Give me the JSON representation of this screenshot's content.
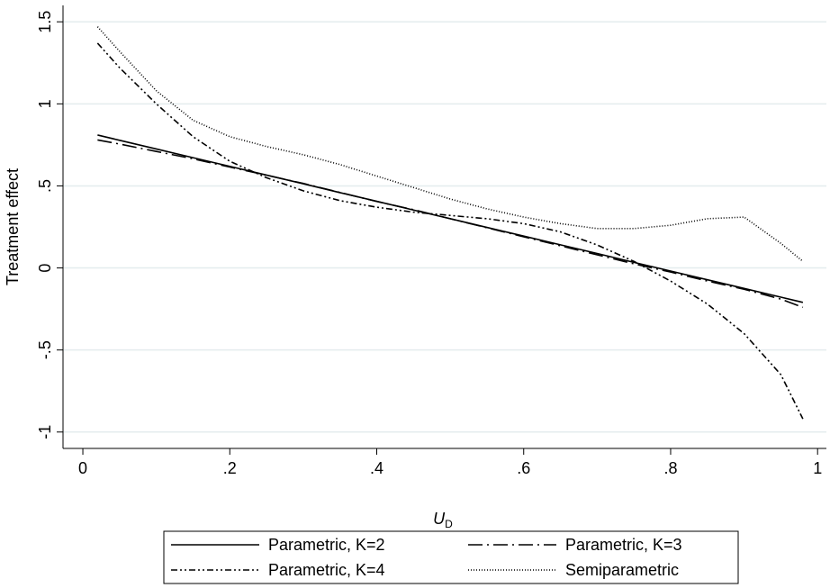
{
  "chart_data": {
    "type": "line",
    "ylabel": "Treatment effect",
    "xlabel": {
      "main": "U",
      "sub": "D"
    },
    "x": [
      0.02,
      0.05,
      0.1,
      0.15,
      0.2,
      0.25,
      0.3,
      0.35,
      0.4,
      0.45,
      0.5,
      0.55,
      0.6,
      0.65,
      0.7,
      0.75,
      0.8,
      0.85,
      0.9,
      0.95,
      0.98
    ],
    "series": [
      {
        "name": "Parametric, K=2",
        "color": "#000000",
        "linestyle": "solid",
        "values": [
          0.81,
          0.778,
          0.725,
          0.672,
          0.619,
          0.566,
          0.513,
          0.459,
          0.406,
          0.353,
          0.3,
          0.247,
          0.194,
          0.141,
          0.088,
          0.034,
          -0.019,
          -0.072,
          -0.125,
          -0.178,
          -0.21
        ]
      },
      {
        "name": "Parametric, K=3",
        "color": "#000000",
        "linestyle": "longdashdot",
        "values": [
          0.78,
          0.755,
          0.71,
          0.665,
          0.615,
          0.565,
          0.515,
          0.46,
          0.405,
          0.355,
          0.3,
          0.245,
          0.19,
          0.135,
          0.08,
          0.025,
          -0.025,
          -0.08,
          -0.13,
          -0.19,
          -0.24
        ]
      },
      {
        "name": "Parametric, K=4",
        "color": "#000000",
        "linestyle": "dashdotdot",
        "values": [
          1.37,
          1.22,
          1.0,
          0.8,
          0.65,
          0.55,
          0.47,
          0.41,
          0.37,
          0.34,
          0.32,
          0.3,
          0.27,
          0.22,
          0.14,
          0.04,
          -0.08,
          -0.22,
          -0.4,
          -0.65,
          -0.92
        ]
      },
      {
        "name": "Semiparametric",
        "color": "#000000",
        "linestyle": "dotted",
        "values": [
          1.47,
          1.32,
          1.08,
          0.9,
          0.8,
          0.74,
          0.69,
          0.63,
          0.56,
          0.49,
          0.42,
          0.36,
          0.31,
          0.27,
          0.24,
          0.24,
          0.26,
          0.3,
          0.31,
          0.15,
          0.04
        ]
      }
    ],
    "xlim": [
      -0.027,
      1.012
    ],
    "ylim": [
      -1.1,
      1.6
    ],
    "xticks": [
      0,
      {
        "value": 0.2,
        "label": ".2"
      },
      {
        "value": 0.4,
        "label": ".4"
      },
      {
        "value": 0.6,
        "label": ".6"
      },
      {
        "value": 0.8,
        "label": ".8"
      },
      1
    ],
    "yticks": [
      -1,
      {
        "value": -0.5,
        "label": "-.5"
      },
      0,
      {
        "value": 0.5,
        "label": ".5"
      },
      1,
      1.5
    ],
    "grid": true,
    "legend": "bottom"
  }
}
